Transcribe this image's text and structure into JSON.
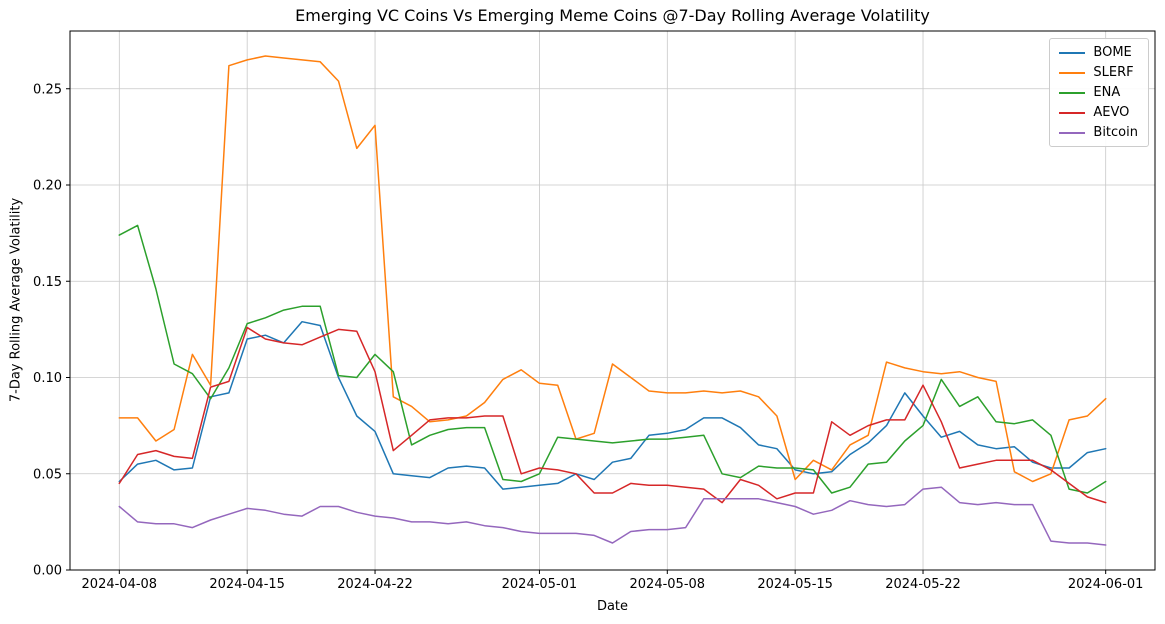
{
  "chart_data": {
    "type": "line",
    "title": "Emerging VC Coins Vs Emerging Meme Coins @7-Day Rolling Average Volatility",
    "xlabel": "Date",
    "ylabel": "7-Day Rolling Average Volatility",
    "grid": true,
    "grid_color": "#c8c8c8",
    "legend_position": "upper right",
    "ylim": [
      0,
      0.28
    ],
    "y_ticks": [
      0.0,
      0.05,
      0.1,
      0.15,
      0.2,
      0.25
    ],
    "x_tick_labels": [
      "2024-04-08",
      "2024-04-15",
      "2024-04-22",
      "2024-05-01",
      "2024-05-08",
      "2024-05-15",
      "2024-05-22",
      "2024-06-01"
    ],
    "x_dates": [
      "2024-04-08",
      "2024-04-09",
      "2024-04-10",
      "2024-04-11",
      "2024-04-12",
      "2024-04-13",
      "2024-04-14",
      "2024-04-15",
      "2024-04-16",
      "2024-04-17",
      "2024-04-18",
      "2024-04-19",
      "2024-04-20",
      "2024-04-21",
      "2024-04-22",
      "2024-04-23",
      "2024-04-24",
      "2024-04-25",
      "2024-04-26",
      "2024-04-27",
      "2024-04-28",
      "2024-04-29",
      "2024-04-30",
      "2024-05-01",
      "2024-05-02",
      "2024-05-03",
      "2024-05-04",
      "2024-05-05",
      "2024-05-06",
      "2024-05-07",
      "2024-05-08",
      "2024-05-09",
      "2024-05-10",
      "2024-05-11",
      "2024-05-12",
      "2024-05-13",
      "2024-05-14",
      "2024-05-15",
      "2024-05-16",
      "2024-05-17",
      "2024-05-18",
      "2024-05-19",
      "2024-05-20",
      "2024-05-21",
      "2024-05-22",
      "2024-05-23",
      "2024-05-24",
      "2024-05-25",
      "2024-05-26",
      "2024-05-27",
      "2024-05-28",
      "2024-05-29",
      "2024-05-30",
      "2024-05-31",
      "2024-06-01"
    ],
    "series": [
      {
        "name": "BOME",
        "color": "#1f77b4",
        "values": [
          0.046,
          0.055,
          0.057,
          0.052,
          0.053,
          0.09,
          0.092,
          0.12,
          0.122,
          0.118,
          0.129,
          0.127,
          0.1,
          0.08,
          0.072,
          0.05,
          0.049,
          0.048,
          0.053,
          0.054,
          0.053,
          0.042,
          0.043,
          0.044,
          0.045,
          0.05,
          0.047,
          0.056,
          0.058,
          0.07,
          0.071,
          0.073,
          0.079,
          0.079,
          0.074,
          0.065,
          0.063,
          0.052,
          0.05,
          0.051,
          0.06,
          0.066,
          0.075,
          0.092,
          0.08,
          0.069,
          0.072,
          0.065,
          0.063,
          0.064,
          0.056,
          0.053,
          0.053,
          0.061,
          0.063
        ]
      },
      {
        "name": "SLERF",
        "color": "#ff7f0e",
        "values": [
          0.079,
          0.079,
          0.067,
          0.073,
          0.112,
          0.096,
          0.262,
          0.265,
          0.267,
          0.266,
          0.265,
          0.264,
          0.254,
          0.219,
          0.231,
          0.09,
          0.085,
          0.077,
          0.078,
          0.08,
          0.087,
          0.099,
          0.104,
          0.097,
          0.096,
          0.068,
          0.071,
          0.107,
          0.1,
          0.093,
          0.092,
          0.092,
          0.093,
          0.092,
          0.093,
          0.09,
          0.08,
          0.047,
          0.057,
          0.052,
          0.065,
          0.07,
          0.108,
          0.105,
          0.103,
          0.102,
          0.103,
          0.1,
          0.098,
          0.051,
          0.046,
          0.05,
          0.078,
          0.08,
          0.089
        ]
      },
      {
        "name": "ENA",
        "color": "#2ca02c",
        "values": [
          0.174,
          0.179,
          0.146,
          0.107,
          0.102,
          0.089,
          0.105,
          0.128,
          0.131,
          0.135,
          0.137,
          0.137,
          0.101,
          0.1,
          0.112,
          0.103,
          0.065,
          0.07,
          0.073,
          0.074,
          0.074,
          0.047,
          0.046,
          0.05,
          0.069,
          0.068,
          0.067,
          0.066,
          0.067,
          0.068,
          0.068,
          0.069,
          0.07,
          0.05,
          0.048,
          0.054,
          0.053,
          0.053,
          0.052,
          0.04,
          0.043,
          0.055,
          0.056,
          0.067,
          0.075,
          0.099,
          0.085,
          0.09,
          0.077,
          0.076,
          0.078,
          0.07,
          0.042,
          0.04,
          0.046
        ]
      },
      {
        "name": "AEVO",
        "color": "#d62728",
        "values": [
          0.045,
          0.06,
          0.062,
          0.059,
          0.058,
          0.095,
          0.098,
          0.126,
          0.12,
          0.118,
          0.117,
          0.121,
          0.125,
          0.124,
          0.103,
          0.062,
          0.07,
          0.078,
          0.079,
          0.079,
          0.08,
          0.08,
          0.05,
          0.053,
          0.052,
          0.05,
          0.04,
          0.04,
          0.045,
          0.044,
          0.044,
          0.043,
          0.042,
          0.035,
          0.047,
          0.044,
          0.037,
          0.04,
          0.04,
          0.077,
          0.07,
          0.075,
          0.078,
          0.078,
          0.096,
          0.077,
          0.053,
          0.055,
          0.057,
          0.057,
          0.057,
          0.052,
          0.045,
          0.038,
          0.035
        ]
      },
      {
        "name": "Bitcoin",
        "color": "#9467bd",
        "values": [
          0.033,
          0.025,
          0.024,
          0.024,
          0.022,
          0.026,
          0.029,
          0.032,
          0.031,
          0.029,
          0.028,
          0.033,
          0.033,
          0.03,
          0.028,
          0.027,
          0.025,
          0.025,
          0.024,
          0.025,
          0.023,
          0.022,
          0.02,
          0.019,
          0.019,
          0.019,
          0.018,
          0.014,
          0.02,
          0.021,
          0.021,
          0.022,
          0.037,
          0.037,
          0.037,
          0.037,
          0.035,
          0.033,
          0.029,
          0.031,
          0.036,
          0.034,
          0.033,
          0.034,
          0.042,
          0.043,
          0.035,
          0.034,
          0.035,
          0.034,
          0.034,
          0.015,
          0.014,
          0.014,
          0.013
        ]
      }
    ]
  }
}
